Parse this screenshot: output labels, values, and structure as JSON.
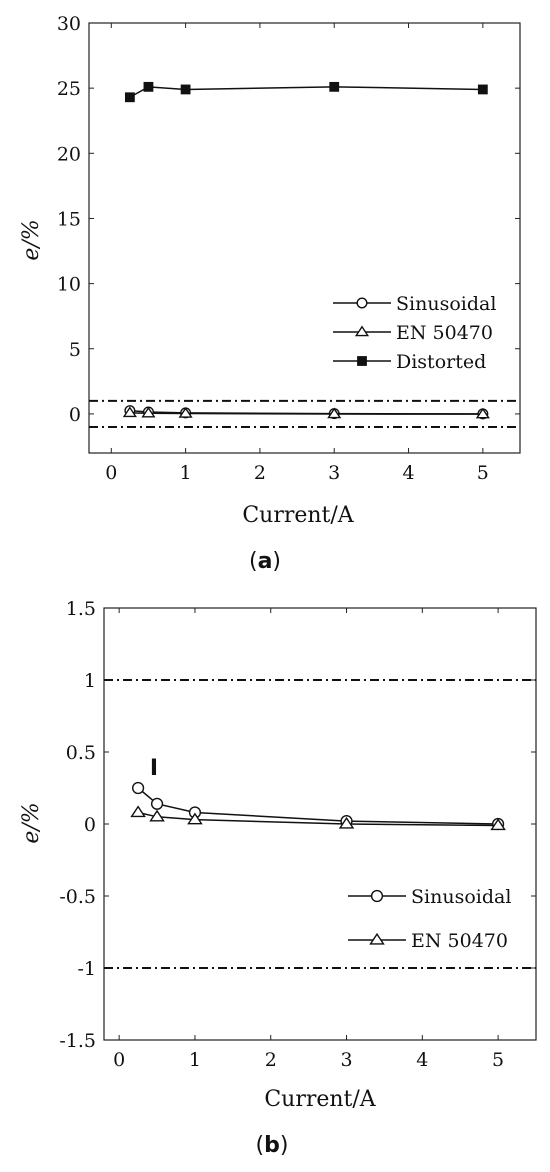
{
  "chart_data": [
    {
      "panel_label": "a",
      "type": "line",
      "xlabel": "Current/A",
      "ylabel": "e/%",
      "xlim": [
        -0.3,
        5.5
      ],
      "ylim": [
        -3,
        30
      ],
      "xticks": [
        0,
        1,
        2,
        3,
        4,
        5
      ],
      "yticks": [
        0,
        5,
        10,
        15,
        20,
        25,
        30
      ],
      "grid": false,
      "legend_position": "lower-right",
      "reference_lines": [
        1,
        -1
      ],
      "series": [
        {
          "name": "Sinusoidal",
          "marker": "circle",
          "x": [
            0.25,
            0.5,
            1,
            3,
            5
          ],
          "y": [
            0.25,
            0.15,
            0.08,
            0.02,
            0.0
          ]
        },
        {
          "name": "EN 50470",
          "marker": "triangle",
          "x": [
            0.25,
            0.5,
            1,
            3,
            5
          ],
          "y": [
            0.08,
            0.05,
            0.03,
            -0.01,
            -0.02
          ]
        },
        {
          "name": "Distorted",
          "marker": "square",
          "x": [
            0.25,
            0.5,
            1,
            3,
            5
          ],
          "y": [
            24.3,
            25.1,
            24.9,
            25.1,
            24.9
          ]
        }
      ]
    },
    {
      "panel_label": "b",
      "type": "line",
      "xlabel": "Current/A",
      "ylabel": "e/%",
      "xlim": [
        -0.2,
        5.5
      ],
      "ylim": [
        -1.5,
        1.5
      ],
      "xticks": [
        0,
        1,
        2,
        3,
        4,
        5
      ],
      "yticks": [
        -1.5,
        -1,
        -0.5,
        0,
        0.5,
        1,
        1.5
      ],
      "grid": false,
      "legend_position": "lower-right",
      "reference_lines": [
        1,
        -1
      ],
      "series": [
        {
          "name": "Sinusoidal",
          "marker": "circle",
          "x": [
            0.25,
            0.5,
            1,
            3,
            5
          ],
          "y": [
            0.25,
            0.14,
            0.08,
            0.02,
            0.0
          ]
        },
        {
          "name": "EN 50470",
          "marker": "triangle",
          "x": [
            0.25,
            0.5,
            1,
            3,
            5
          ],
          "y": [
            0.08,
            0.05,
            0.03,
            0.0,
            -0.01
          ]
        }
      ],
      "annotations": [
        {
          "text": "I"
        }
      ]
    }
  ]
}
